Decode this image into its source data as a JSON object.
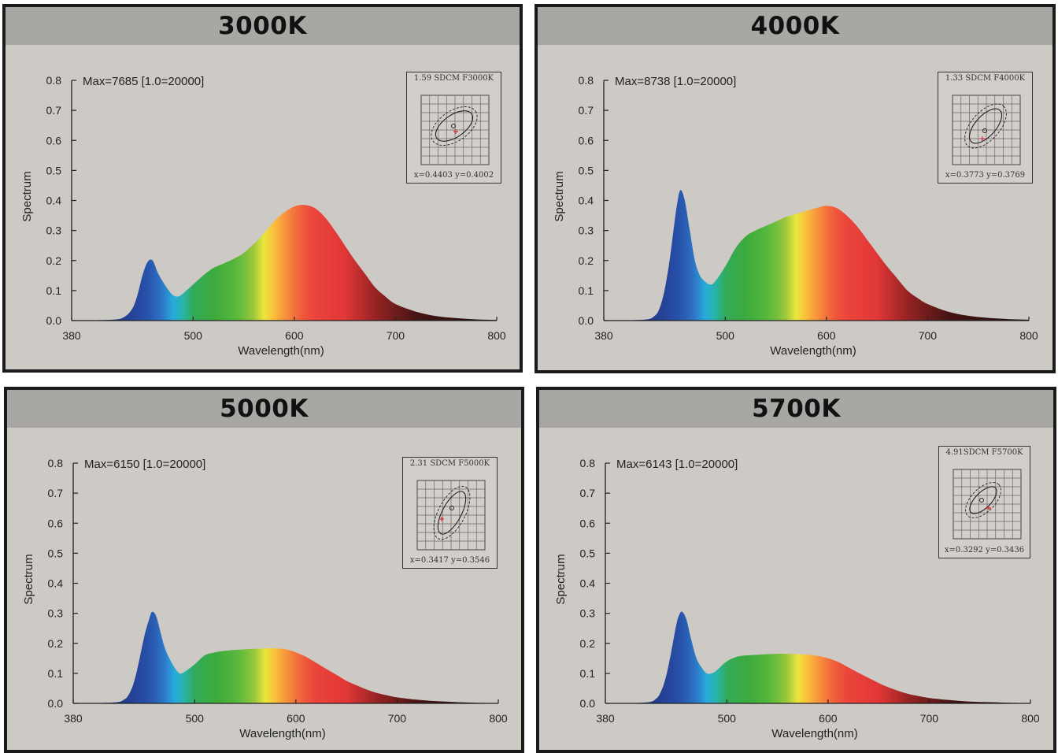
{
  "chart_data": [
    {
      "type": "area",
      "title": "3000K",
      "xlabel": "Wavelength(nm)",
      "ylabel": "Spectrum",
      "annotation": "Max=7685  [1.0=20000]",
      "xlim": [
        380,
        800
      ],
      "ylim": [
        0,
        0.8
      ],
      "x_ticks": [
        380,
        500,
        600,
        700,
        800
      ],
      "y_ticks": [
        "0.0",
        "0.1",
        "0.2",
        "0.3",
        "0.4",
        "0.5",
        "0.6",
        "0.7",
        "0.8"
      ],
      "series": [
        {
          "x": [
            380,
            420,
            432,
            440,
            445,
            450,
            455,
            460,
            465,
            470,
            475,
            480,
            485,
            490,
            500,
            510,
            520,
            530,
            540,
            550,
            560,
            570,
            580,
            590,
            600,
            610,
            620,
            630,
            640,
            650,
            660,
            670,
            680,
            690,
            700,
            720,
            740,
            760,
            780,
            800
          ],
          "values": [
            0.0,
            0.003,
            0.012,
            0.04,
            0.085,
            0.15,
            0.195,
            0.2,
            0.16,
            0.13,
            0.105,
            0.085,
            0.08,
            0.09,
            0.12,
            0.15,
            0.175,
            0.19,
            0.205,
            0.225,
            0.255,
            0.29,
            0.33,
            0.36,
            0.38,
            0.385,
            0.375,
            0.345,
            0.3,
            0.25,
            0.2,
            0.155,
            0.11,
            0.08,
            0.055,
            0.03,
            0.015,
            0.008,
            0.004,
            0.002
          ]
        }
      ],
      "inset": {
        "title": "1.59 SDCM  F3000K",
        "coords": "x=0.4403  y=0.4002"
      }
    },
    {
      "type": "area",
      "title": "4000K",
      "xlabel": "Wavelength(nm)",
      "ylabel": "Spectrum",
      "annotation": "Max=8738  [1.0=20000]",
      "xlim": [
        380,
        800
      ],
      "ylim": [
        0,
        0.8
      ],
      "x_ticks": [
        380,
        500,
        600,
        700,
        800
      ],
      "y_ticks": [
        "0.0",
        "0.1",
        "0.2",
        "0.3",
        "0.4",
        "0.5",
        "0.6",
        "0.7",
        "0.8"
      ],
      "series": [
        {
          "x": [
            380,
            420,
            430,
            435,
            440,
            445,
            450,
            453,
            456,
            460,
            465,
            470,
            475,
            480,
            485,
            490,
            500,
            510,
            520,
            530,
            540,
            550,
            560,
            570,
            580,
            590,
            600,
            610,
            620,
            630,
            640,
            650,
            660,
            670,
            680,
            690,
            700,
            720,
            740,
            760,
            780,
            800
          ],
          "values": [
            0.0,
            0.003,
            0.015,
            0.04,
            0.1,
            0.2,
            0.33,
            0.4,
            0.435,
            0.4,
            0.3,
            0.2,
            0.15,
            0.13,
            0.12,
            0.13,
            0.18,
            0.24,
            0.28,
            0.3,
            0.315,
            0.33,
            0.345,
            0.355,
            0.365,
            0.375,
            0.382,
            0.375,
            0.35,
            0.315,
            0.27,
            0.225,
            0.18,
            0.14,
            0.1,
            0.075,
            0.055,
            0.03,
            0.016,
            0.009,
            0.005,
            0.003
          ]
        }
      ],
      "inset": {
        "title": "1.33 SDCM  F4000K",
        "coords": "x=0.3773  y=0.3769"
      }
    },
    {
      "type": "area",
      "title": "5000K",
      "xlabel": "Wavelength(nm)",
      "ylabel": "Spectrum",
      "annotation": "Max=6150  [1.0=20000]",
      "xlim": [
        380,
        800
      ],
      "ylim": [
        0,
        0.8
      ],
      "x_ticks": [
        380,
        500,
        600,
        700,
        800
      ],
      "y_ticks": [
        "0.0",
        "0.1",
        "0.2",
        "0.3",
        "0.4",
        "0.5",
        "0.6",
        "0.7",
        "0.8"
      ],
      "series": [
        {
          "x": [
            380,
            420,
            430,
            435,
            440,
            445,
            450,
            455,
            458,
            462,
            466,
            470,
            475,
            480,
            485,
            490,
            500,
            510,
            520,
            530,
            540,
            550,
            560,
            570,
            580,
            590,
            600,
            610,
            620,
            630,
            640,
            650,
            660,
            670,
            680,
            690,
            700,
            720,
            740,
            760,
            780,
            800
          ],
          "values": [
            0.0,
            0.003,
            0.012,
            0.03,
            0.07,
            0.14,
            0.22,
            0.28,
            0.305,
            0.29,
            0.24,
            0.19,
            0.15,
            0.12,
            0.1,
            0.105,
            0.13,
            0.16,
            0.17,
            0.175,
            0.178,
            0.18,
            0.182,
            0.183,
            0.183,
            0.18,
            0.17,
            0.155,
            0.135,
            0.115,
            0.095,
            0.075,
            0.06,
            0.046,
            0.035,
            0.027,
            0.02,
            0.012,
            0.007,
            0.004,
            0.002,
            0.001
          ]
        }
      ],
      "inset": {
        "title": "2.31  SDCM  F5000K",
        "coords": "x=0.3417  y=0.3546"
      }
    },
    {
      "type": "area",
      "title": "5700K",
      "xlabel": "Wavelength(nm)",
      "ylabel": "Spectrum",
      "annotation": "Max=6143  [1.0=20000]",
      "xlim": [
        380,
        800
      ],
      "ylim": [
        0,
        0.8
      ],
      "x_ticks": [
        380,
        500,
        600,
        700,
        800
      ],
      "y_ticks": [
        "0.0",
        "0.1",
        "0.2",
        "0.3",
        "0.4",
        "0.5",
        "0.6",
        "0.7",
        "0.8"
      ],
      "series": [
        {
          "x": [
            380,
            420,
            430,
            435,
            440,
            445,
            450,
            453,
            456,
            460,
            465,
            470,
            475,
            480,
            485,
            490,
            500,
            510,
            520,
            530,
            540,
            550,
            560,
            570,
            580,
            590,
            600,
            610,
            620,
            630,
            640,
            650,
            660,
            670,
            680,
            690,
            700,
            720,
            740,
            760,
            780,
            800
          ],
          "values": [
            0.0,
            0.003,
            0.015,
            0.04,
            0.09,
            0.17,
            0.26,
            0.295,
            0.305,
            0.28,
            0.21,
            0.15,
            0.12,
            0.1,
            0.1,
            0.11,
            0.14,
            0.155,
            0.16,
            0.162,
            0.164,
            0.165,
            0.165,
            0.164,
            0.162,
            0.158,
            0.15,
            0.138,
            0.12,
            0.102,
            0.085,
            0.068,
            0.053,
            0.041,
            0.031,
            0.024,
            0.018,
            0.011,
            0.006,
            0.004,
            0.002,
            0.001
          ]
        }
      ],
      "inset": {
        "title": "4.91SDCM  F5700K",
        "coords": "x=0.3292  y=0.3436"
      }
    }
  ]
}
